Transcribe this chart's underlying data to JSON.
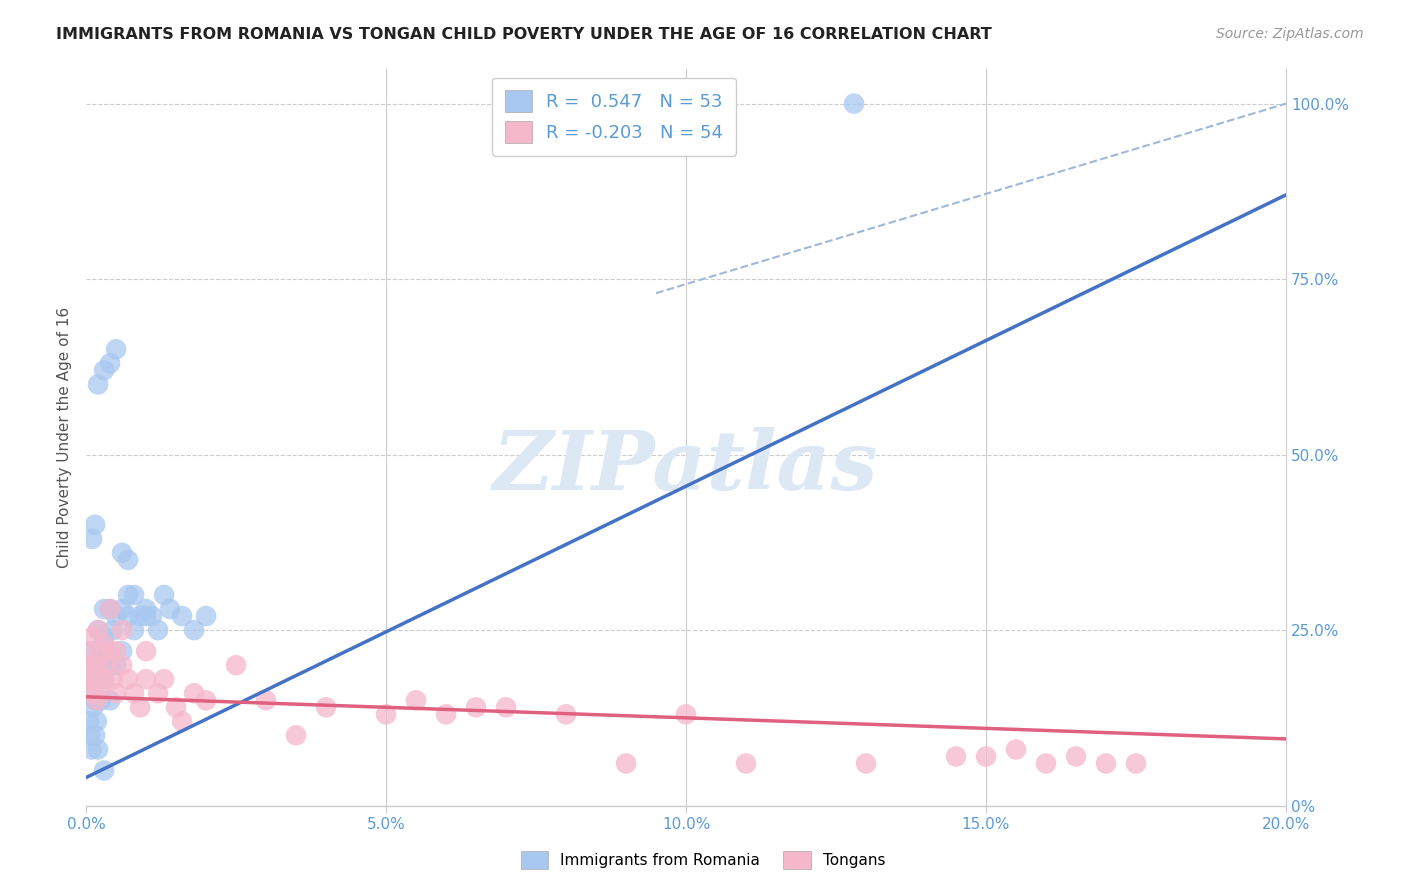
{
  "title": "IMMIGRANTS FROM ROMANIA VS TONGAN CHILD POVERTY UNDER THE AGE OF 16 CORRELATION CHART",
  "source": "Source: ZipAtlas.com",
  "ylabel": "Child Poverty Under the Age of 16",
  "legend1_label": "Immigrants from Romania",
  "legend2_label": "Tongans",
  "r1": 0.547,
  "n1": 53,
  "r2": -0.203,
  "n2": 54,
  "blue_color": "#a8c8f0",
  "pink_color": "#f5b8cb",
  "blue_line_color": "#4472c4",
  "pink_line_color": "#e06080",
  "dashed_line_color": "#a0b8d8",
  "watermark_color": "#dde8f5",
  "blue_line_x0": 0.0,
  "blue_line_y0": 0.04,
  "blue_line_x1": 0.2,
  "blue_line_y1": 0.87,
  "pink_line_x0": 0.0,
  "pink_line_y0": 0.155,
  "pink_line_x1": 0.2,
  "pink_line_y1": 0.095,
  "dash_line_x0": 0.095,
  "dash_line_y0": 0.73,
  "dash_line_x1": 0.2,
  "dash_line_y1": 1.0,
  "xmin": 0.0,
  "xmax": 0.2,
  "ymin": 0.0,
  "ymax": 1.05,
  "xticks": [
    0.0,
    0.05,
    0.1,
    0.15,
    0.2
  ],
  "xtick_labels": [
    "0.0%",
    "5.0%",
    "10.0%",
    "15.0%",
    "20.0%"
  ],
  "ytick_positions": [
    0.0,
    0.25,
    0.5,
    0.75,
    1.0
  ],
  "ytick_labels": [
    "0%",
    "25.0%",
    "50.0%",
    "75.0%",
    "100.0%"
  ],
  "blue_scatter_x": [
    0.0003,
    0.0005,
    0.0007,
    0.0009,
    0.001,
    0.001,
    0.0012,
    0.0012,
    0.0015,
    0.0015,
    0.0018,
    0.002,
    0.002,
    0.002,
    0.0022,
    0.0025,
    0.0025,
    0.003,
    0.003,
    0.003,
    0.0035,
    0.004,
    0.004,
    0.004,
    0.0045,
    0.005,
    0.005,
    0.006,
    0.006,
    0.007,
    0.007,
    0.008,
    0.009,
    0.01,
    0.011,
    0.013,
    0.014,
    0.016,
    0.018,
    0.02,
    0.001,
    0.0015,
    0.002,
    0.003,
    0.004,
    0.005,
    0.006,
    0.007,
    0.008,
    0.01,
    0.012,
    0.128,
    0.003
  ],
  "blue_scatter_y": [
    0.16,
    0.12,
    0.1,
    0.08,
    0.18,
    0.22,
    0.14,
    0.2,
    0.1,
    0.15,
    0.12,
    0.18,
    0.25,
    0.08,
    0.2,
    0.22,
    0.15,
    0.24,
    0.18,
    0.28,
    0.22,
    0.2,
    0.28,
    0.15,
    0.25,
    0.27,
    0.2,
    0.28,
    0.22,
    0.27,
    0.3,
    0.25,
    0.27,
    0.28,
    0.27,
    0.3,
    0.28,
    0.27,
    0.25,
    0.27,
    0.38,
    0.4,
    0.6,
    0.62,
    0.63,
    0.65,
    0.36,
    0.35,
    0.3,
    0.27,
    0.25,
    1.0,
    0.05
  ],
  "pink_scatter_x": [
    0.0003,
    0.0005,
    0.0007,
    0.001,
    0.001,
    0.0012,
    0.0015,
    0.0018,
    0.002,
    0.002,
    0.0022,
    0.0025,
    0.003,
    0.003,
    0.0035,
    0.004,
    0.004,
    0.0045,
    0.005,
    0.005,
    0.006,
    0.006,
    0.007,
    0.008,
    0.009,
    0.01,
    0.01,
    0.012,
    0.013,
    0.015,
    0.016,
    0.018,
    0.02,
    0.025,
    0.03,
    0.035,
    0.04,
    0.05,
    0.055,
    0.06,
    0.065,
    0.07,
    0.08,
    0.09,
    0.1,
    0.11,
    0.13,
    0.145,
    0.15,
    0.155,
    0.16,
    0.165,
    0.17,
    0.175
  ],
  "pink_scatter_y": [
    0.22,
    0.18,
    0.2,
    0.16,
    0.24,
    0.2,
    0.18,
    0.15,
    0.2,
    0.25,
    0.16,
    0.22,
    0.18,
    0.23,
    0.2,
    0.22,
    0.28,
    0.18,
    0.22,
    0.16,
    0.2,
    0.25,
    0.18,
    0.16,
    0.14,
    0.18,
    0.22,
    0.16,
    0.18,
    0.14,
    0.12,
    0.16,
    0.15,
    0.2,
    0.15,
    0.1,
    0.14,
    0.13,
    0.15,
    0.13,
    0.14,
    0.14,
    0.13,
    0.06,
    0.13,
    0.06,
    0.06,
    0.07,
    0.07,
    0.08,
    0.06,
    0.07,
    0.06,
    0.06
  ]
}
